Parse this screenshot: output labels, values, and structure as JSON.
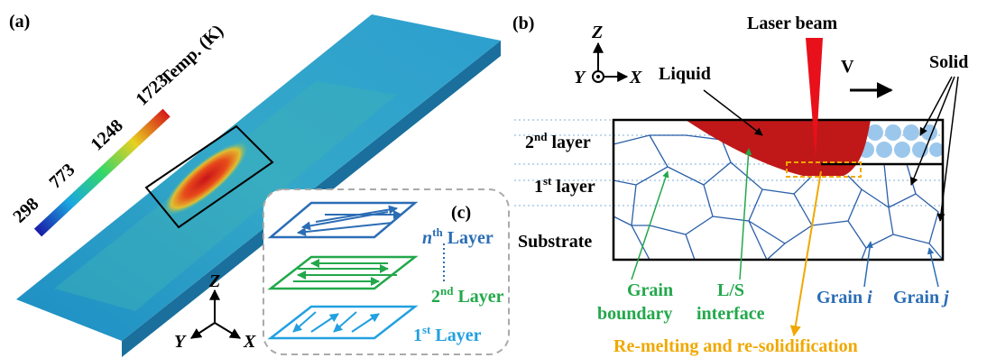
{
  "panel_a": {
    "label": "(a)",
    "colorbar": {
      "title": "Temp. (K)",
      "ticks": [
        "298",
        "773",
        "1248",
        "1723"
      ]
    },
    "axes": {
      "z": "Z",
      "y": "Y",
      "x": "X"
    }
  },
  "panel_c": {
    "label": "(c)",
    "layers": [
      {
        "main": "n",
        "sup": "th",
        "rest": " Layer"
      },
      {
        "main": "2",
        "sup": "nd",
        "rest": " Layer"
      },
      {
        "main": "1",
        "sup": "st",
        "rest": " Layer"
      }
    ]
  },
  "panel_b": {
    "label": "(b)",
    "axes": {
      "z": "Z",
      "y": "Y",
      "x": "X"
    },
    "laser": "Laser beam",
    "velocity": "V",
    "liquid": "Liquid",
    "solid": "Solid",
    "layers": [
      {
        "main": "2",
        "sup": "nd",
        "rest": " layer"
      },
      {
        "main": "1",
        "sup": "st",
        "rest": " layer"
      },
      {
        "main": "Substrate"
      }
    ],
    "grain_boundary": [
      "Grain",
      "boundary"
    ],
    "interface": [
      "L/S",
      "interface"
    ],
    "grain_i": {
      "word": "Grain ",
      "symbol": "i"
    },
    "grain_j": {
      "word": "Grain ",
      "symbol": "j"
    },
    "remelting": "Re-melting and re-solidification"
  }
}
